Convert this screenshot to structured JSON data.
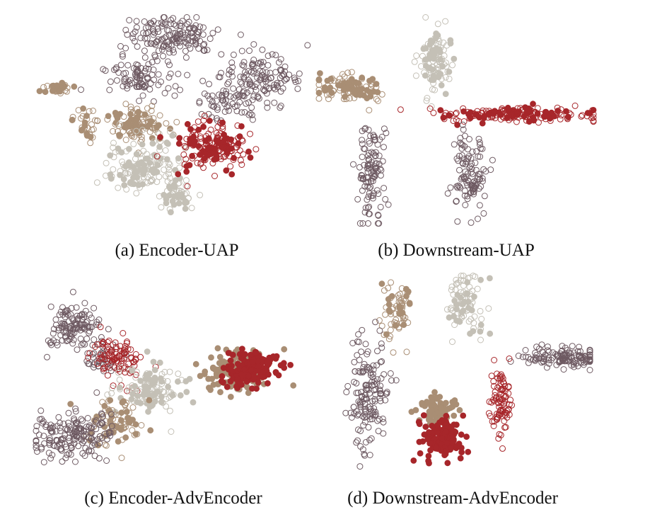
{
  "figure": {
    "colors": {
      "mauve": "#6e5a62",
      "beige": "#a98e74",
      "lightgray": "#c4c0b6",
      "red": "#a7262a"
    }
  },
  "chart_data": [
    {
      "type": "scatter",
      "title": "(a) Encoder-UAP",
      "xlabel": "",
      "ylabel": "",
      "grid": false,
      "clusters": [
        {
          "color": "mauve",
          "marker": "hollow",
          "center": [
            0.48,
            0.1
          ],
          "spread": [
            0.13,
            0.08
          ],
          "count": 150
        },
        {
          "color": "mauve",
          "marker": "hollow",
          "center": [
            0.37,
            0.3
          ],
          "spread": [
            0.1,
            0.08
          ],
          "count": 90
        },
        {
          "color": "mauve",
          "marker": "hollow",
          "center": [
            0.8,
            0.3
          ],
          "spread": [
            0.12,
            0.1
          ],
          "count": 130
        },
        {
          "color": "mauve",
          "marker": "hollow",
          "center": [
            0.67,
            0.4
          ],
          "spread": [
            0.1,
            0.08
          ],
          "count": 60
        },
        {
          "color": "beige",
          "marker": "mixed",
          "center": [
            0.08,
            0.35
          ],
          "spread": [
            0.04,
            0.02
          ],
          "count": 35
        },
        {
          "color": "beige",
          "marker": "mixed",
          "center": [
            0.18,
            0.52
          ],
          "spread": [
            0.04,
            0.06
          ],
          "count": 30
        },
        {
          "color": "beige",
          "marker": "mixed",
          "center": [
            0.35,
            0.52
          ],
          "spread": [
            0.09,
            0.07
          ],
          "count": 120
        },
        {
          "color": "lightgray",
          "marker": "mixed",
          "center": [
            0.38,
            0.72
          ],
          "spread": [
            0.12,
            0.1
          ],
          "count": 150
        },
        {
          "color": "lightgray",
          "marker": "mixed",
          "center": [
            0.5,
            0.85
          ],
          "spread": [
            0.06,
            0.06
          ],
          "count": 50
        },
        {
          "color": "red",
          "marker": "mixed",
          "center": [
            0.63,
            0.62
          ],
          "spread": [
            0.1,
            0.09
          ],
          "count": 170
        }
      ]
    },
    {
      "type": "scatter",
      "title": "(b) Downstream-UAP",
      "xlabel": "",
      "ylabel": "",
      "grid": false,
      "clusters": [
        {
          "color": "lightgray",
          "marker": "mixed",
          "center": [
            0.43,
            0.22
          ],
          "spread": [
            0.05,
            0.13
          ],
          "count": 110
        },
        {
          "color": "beige",
          "marker": "mixed",
          "center": [
            0.12,
            0.35
          ],
          "spread": [
            0.09,
            0.05
          ],
          "count": 110
        },
        {
          "color": "red",
          "marker": "mixed",
          "center": [
            0.7,
            0.47
          ],
          "spread": [
            0.22,
            0.03
          ],
          "count": 180
        },
        {
          "color": "mauve",
          "marker": "hollow",
          "center": [
            0.2,
            0.75
          ],
          "spread": [
            0.04,
            0.18
          ],
          "count": 110
        },
        {
          "color": "mauve",
          "marker": "hollow",
          "center": [
            0.55,
            0.75
          ],
          "spread": [
            0.05,
            0.15
          ],
          "count": 110
        }
      ]
    },
    {
      "type": "scatter",
      "title": "(c) Encoder-AdvEncoder",
      "xlabel": "",
      "ylabel": "",
      "grid": false,
      "clusters": [
        {
          "color": "mauve",
          "marker": "hollow",
          "center": [
            0.15,
            0.25
          ],
          "spread": [
            0.08,
            0.1
          ],
          "count": 120
        },
        {
          "color": "mauve",
          "marker": "hollow",
          "center": [
            0.25,
            0.4
          ],
          "spread": [
            0.06,
            0.06
          ],
          "count": 40
        },
        {
          "color": "red",
          "marker": "hollow",
          "center": [
            0.3,
            0.4
          ],
          "spread": [
            0.06,
            0.09
          ],
          "count": 100
        },
        {
          "color": "lightgray",
          "marker": "mixed",
          "center": [
            0.42,
            0.55
          ],
          "spread": [
            0.1,
            0.1
          ],
          "count": 130
        },
        {
          "color": "beige",
          "marker": "mixed",
          "center": [
            0.3,
            0.7
          ],
          "spread": [
            0.08,
            0.08
          ],
          "count": 90
        },
        {
          "color": "mauve",
          "marker": "hollow",
          "center": [
            0.15,
            0.75
          ],
          "spread": [
            0.12,
            0.1
          ],
          "count": 170
        },
        {
          "color": "beige",
          "marker": "filled",
          "center": [
            0.72,
            0.47
          ],
          "spread": [
            0.09,
            0.08
          ],
          "count": 140
        },
        {
          "color": "red",
          "marker": "filled",
          "center": [
            0.78,
            0.45
          ],
          "spread": [
            0.08,
            0.07
          ],
          "count": 140
        }
      ]
    },
    {
      "type": "scatter",
      "title": "(d) Downstream-AdvEncoder",
      "xlabel": "",
      "ylabel": "",
      "grid": false,
      "clusters": [
        {
          "color": "beige",
          "marker": "mixed",
          "center": [
            0.3,
            0.18
          ],
          "spread": [
            0.05,
            0.12
          ],
          "count": 70
        },
        {
          "color": "lightgray",
          "marker": "mixed",
          "center": [
            0.55,
            0.15
          ],
          "spread": [
            0.06,
            0.12
          ],
          "count": 90
        },
        {
          "color": "mauve",
          "marker": "hollow",
          "center": [
            0.2,
            0.55
          ],
          "spread": [
            0.06,
            0.2
          ],
          "count": 150
        },
        {
          "color": "beige",
          "marker": "filled",
          "center": [
            0.44,
            0.65
          ],
          "spread": [
            0.05,
            0.05
          ],
          "count": 80
        },
        {
          "color": "red",
          "marker": "filled",
          "center": [
            0.46,
            0.78
          ],
          "spread": [
            0.06,
            0.07
          ],
          "count": 150
        },
        {
          "color": "mauve",
          "marker": "hollow",
          "center": [
            0.88,
            0.4
          ],
          "spread": [
            0.12,
            0.04
          ],
          "count": 130
        },
        {
          "color": "red",
          "marker": "hollow",
          "center": [
            0.67,
            0.62
          ],
          "spread": [
            0.03,
            0.14
          ],
          "count": 90
        }
      ]
    }
  ]
}
